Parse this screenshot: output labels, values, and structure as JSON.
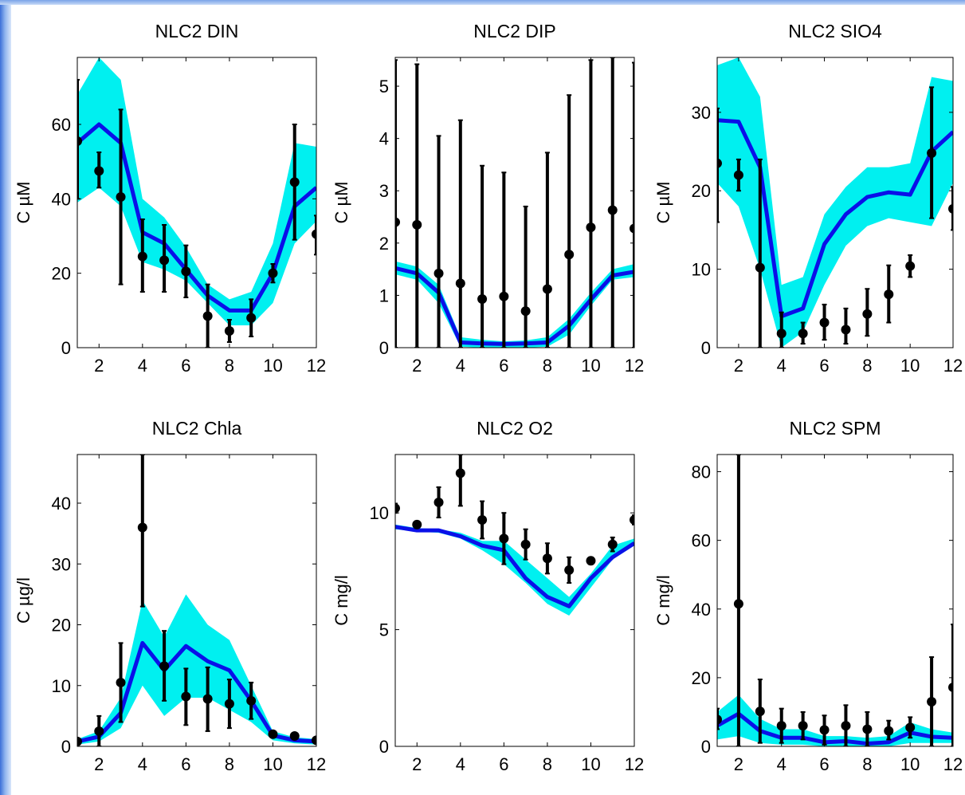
{
  "chart_data": [
    {
      "type": "line",
      "title": "NLC2 DIN",
      "ylabel": "C µM",
      "xlim": [
        1,
        12
      ],
      "ylim": [
        0,
        78
      ],
      "xticks": [
        2,
        4,
        6,
        8,
        10,
        12
      ],
      "yticks": [
        0,
        20,
        40,
        60
      ],
      "x": [
        1,
        2,
        3,
        4,
        5,
        6,
        7,
        8,
        9,
        10,
        11,
        12
      ],
      "series": [
        {
          "role": "band",
          "color": "#00f0f0",
          "lower": [
            39,
            43,
            38,
            23,
            21,
            18,
            12,
            6,
            6,
            12,
            28,
            34
          ],
          "upper": [
            68,
            80,
            72,
            40,
            35,
            27,
            17,
            13,
            15,
            28,
            55,
            54
          ]
        },
        {
          "role": "model",
          "color": "#0a10e8",
          "values": [
            55,
            60,
            55,
            31,
            28,
            21,
            14,
            10,
            10,
            20,
            38,
            43
          ]
        },
        {
          "role": "observed",
          "color": "#000000",
          "values": [
            55.5,
            47.5,
            40.5,
            24.5,
            23.5,
            20.5,
            8.5,
            4.5,
            8,
            20,
            44.5,
            30.5
          ],
          "err_low": [
            40,
            43,
            17,
            15,
            15,
            13.5,
            0,
            1.5,
            3,
            17.5,
            29,
            25
          ],
          "err_high": [
            72,
            52.5,
            64,
            34.5,
            33,
            27.5,
            17,
            7.5,
            13,
            22.5,
            60,
            35.5
          ]
        }
      ]
    },
    {
      "type": "line",
      "title": "NLC2 DIP",
      "ylabel": "C µM",
      "xlim": [
        1,
        12
      ],
      "ylim": [
        0,
        5.55
      ],
      "xticks": [
        2,
        4,
        6,
        8,
        10,
        12
      ],
      "yticks": [
        0,
        1,
        2,
        3,
        4,
        5
      ],
      "x": [
        1,
        2,
        3,
        4,
        5,
        6,
        7,
        8,
        9,
        10,
        11,
        12
      ],
      "series": [
        {
          "role": "band",
          "color": "#00f0f0",
          "lower": [
            1.4,
            1.3,
            0.85,
            0.02,
            0.0,
            0.0,
            0.0,
            0.02,
            0.25,
            0.8,
            1.3,
            1.35
          ],
          "upper": [
            1.65,
            1.55,
            1.2,
            0.2,
            0.15,
            0.12,
            0.14,
            0.2,
            0.55,
            1.05,
            1.5,
            1.6
          ]
        },
        {
          "role": "model",
          "color": "#0a10e8",
          "values": [
            1.52,
            1.42,
            1.05,
            0.1,
            0.08,
            0.07,
            0.08,
            0.1,
            0.42,
            0.92,
            1.38,
            1.45
          ]
        },
        {
          "role": "observed",
          "color": "#000000",
          "values": [
            2.4,
            2.35,
            1.42,
            1.23,
            0.93,
            0.98,
            0.7,
            1.12,
            1.78,
            2.3,
            2.63,
            2.28
          ],
          "err_low": [
            0,
            0,
            0,
            0,
            0,
            0,
            0,
            0,
            0,
            0,
            0,
            0
          ],
          "err_high": [
            5.5,
            5.42,
            4.05,
            4.35,
            3.48,
            3.35,
            2.7,
            3.73,
            4.83,
            5.5,
            5.55,
            5.45
          ]
        }
      ]
    },
    {
      "type": "line",
      "title": "NLC2 SIO4",
      "ylabel": "C µM",
      "xlim": [
        1,
        12
      ],
      "ylim": [
        0,
        37
      ],
      "xticks": [
        2,
        4,
        6,
        8,
        10,
        12
      ],
      "yticks": [
        0,
        10,
        20,
        30
      ],
      "x": [
        1,
        2,
        3,
        4,
        5,
        6,
        7,
        8,
        9,
        10,
        11,
        12
      ],
      "series": [
        {
          "role": "band",
          "color": "#00f0f0",
          "lower": [
            21,
            18,
            10,
            0,
            2,
            8,
            13,
            15.5,
            16.5,
            16,
            15.5,
            21
          ],
          "upper": [
            36,
            38,
            32,
            8,
            9,
            17,
            20.5,
            23,
            23,
            23.5,
            34.5,
            34
          ]
        },
        {
          "role": "model",
          "color": "#0a10e8",
          "values": [
            29,
            28.8,
            23,
            4,
            5,
            13.2,
            17,
            19.2,
            19.8,
            19.5,
            25,
            27.5
          ]
        },
        {
          "role": "observed",
          "color": "#000000",
          "values": [
            23.5,
            22,
            10.2,
            1.8,
            1.8,
            3.2,
            2.3,
            4.3,
            6.8,
            10.4,
            24.8,
            17.7
          ],
          "err_low": [
            16,
            20,
            0,
            0,
            0.5,
            1,
            0.5,
            1.5,
            3.2,
            9,
            16.5,
            15
          ],
          "err_high": [
            30.5,
            24,
            24,
            4.5,
            3.2,
            5.5,
            5,
            7.5,
            10.5,
            11.8,
            33.2,
            20.5
          ]
        }
      ]
    },
    {
      "type": "line",
      "title": "NLC2 Chla",
      "ylabel": "C µg/l",
      "xlim": [
        1,
        12
      ],
      "ylim": [
        0,
        48
      ],
      "xticks": [
        2,
        4,
        6,
        8,
        10,
        12
      ],
      "yticks": [
        0,
        10,
        20,
        30,
        40
      ],
      "x": [
        1,
        2,
        3,
        4,
        5,
        6,
        7,
        8,
        9,
        10,
        11,
        12
      ],
      "series": [
        {
          "role": "band",
          "color": "#00f0f0",
          "lower": [
            0.3,
            0.8,
            3,
            10,
            5,
            8,
            8,
            6,
            4,
            1,
            0.5,
            0.3
          ],
          "upper": [
            1.2,
            2.5,
            8,
            24,
            18,
            25,
            20,
            17.5,
            10,
            2.5,
            1.5,
            1.2
          ]
        },
        {
          "role": "model",
          "color": "#0a10e8",
          "values": [
            0.8,
            1.6,
            5.5,
            17,
            12.5,
            16.5,
            14,
            12.5,
            7.5,
            1.8,
            1,
            0.8
          ]
        },
        {
          "role": "observed",
          "color": "#000000",
          "values": [
            0.8,
            2.5,
            10.5,
            36,
            13.2,
            8.2,
            7.8,
            7,
            7.5,
            2,
            1.7,
            1
          ],
          "err_low": [
            0.5,
            0,
            4,
            23,
            7.5,
            3.5,
            2.5,
            3,
            4.5,
            1.5,
            1.2,
            0.5
          ],
          "err_high": [
            1.2,
            5,
            17,
            48,
            19,
            12.8,
            13,
            11,
            10.5,
            2.5,
            2.2,
            1.5
          ]
        }
      ]
    },
    {
      "type": "line",
      "title": "NLC2 O2",
      "ylabel": "C mg/l",
      "xlim": [
        1,
        12
      ],
      "ylim": [
        0,
        12.5
      ],
      "xticks": [
        2,
        4,
        6,
        8,
        10,
        12
      ],
      "yticks": [
        0,
        5,
        10
      ],
      "x": [
        1,
        2,
        3,
        4,
        5,
        6,
        7,
        8,
        9,
        10,
        11,
        12
      ],
      "series": [
        {
          "role": "band",
          "color": "#00f0f0",
          "lower": [
            9.3,
            9.2,
            9.15,
            8.9,
            8.4,
            7.8,
            7.0,
            6.1,
            5.6,
            6.8,
            8.0,
            8.6
          ],
          "upper": [
            9.5,
            9.35,
            9.3,
            9.15,
            8.8,
            8.8,
            8.0,
            7.2,
            6.4,
            7.4,
            8.6,
            8.9
          ]
        },
        {
          "role": "model",
          "color": "#0a10e8",
          "values": [
            9.4,
            9.25,
            9.25,
            9.0,
            8.6,
            8.4,
            7.2,
            6.4,
            6.0,
            7.2,
            8.1,
            8.7
          ]
        },
        {
          "role": "observed",
          "color": "#000000",
          "values": [
            10.2,
            9.5,
            10.45,
            11.7,
            9.7,
            8.9,
            8.65,
            8.05,
            7.55,
            7.95,
            8.65,
            9.7
          ],
          "err_low": [
            10.0,
            9.35,
            9.8,
            10.3,
            8.9,
            7.8,
            8.0,
            7.4,
            7.0,
            7.8,
            8.35,
            9.5
          ],
          "err_high": [
            10.4,
            9.65,
            11.1,
            12.5,
            10.5,
            10.0,
            9.3,
            8.7,
            8.1,
            8.1,
            8.95,
            9.9
          ]
        }
      ]
    },
    {
      "type": "line",
      "title": "NLC2 SPM",
      "ylabel": "C mg/l",
      "xlim": [
        1,
        12
      ],
      "ylim": [
        0,
        85
      ],
      "xticks": [
        2,
        4,
        6,
        8,
        10,
        12
      ],
      "yticks": [
        0,
        20,
        40,
        60,
        80
      ],
      "x": [
        1,
        2,
        3,
        4,
        5,
        6,
        7,
        8,
        9,
        10,
        11,
        12
      ],
      "series": [
        {
          "role": "band",
          "color": "#00f0f0",
          "lower": [
            2,
            3,
            1,
            0.5,
            0.5,
            0,
            0,
            0,
            0,
            1,
            1,
            1
          ],
          "upper": [
            10,
            15,
            8,
            5,
            5,
            3,
            3,
            2.5,
            3,
            7,
            5,
            4
          ]
        },
        {
          "role": "model",
          "color": "#0a10e8",
          "values": [
            6,
            9.5,
            4.5,
            2.5,
            2.5,
            1.2,
            1.5,
            0.8,
            1.2,
            4,
            2.8,
            2.5
          ]
        },
        {
          "role": "observed",
          "color": "#000000",
          "values": [
            7.8,
            41.5,
            10.2,
            6,
            6,
            4.8,
            6,
            5,
            4.5,
            5.5,
            13,
            17.2
          ],
          "err_low": [
            5,
            0,
            1,
            1,
            2,
            0.5,
            0,
            0,
            2,
            2.5,
            0,
            0
          ],
          "err_high": [
            11,
            85,
            19.5,
            11,
            10,
            9,
            12,
            10,
            7.5,
            8.5,
            26,
            35.5
          ]
        }
      ]
    }
  ]
}
